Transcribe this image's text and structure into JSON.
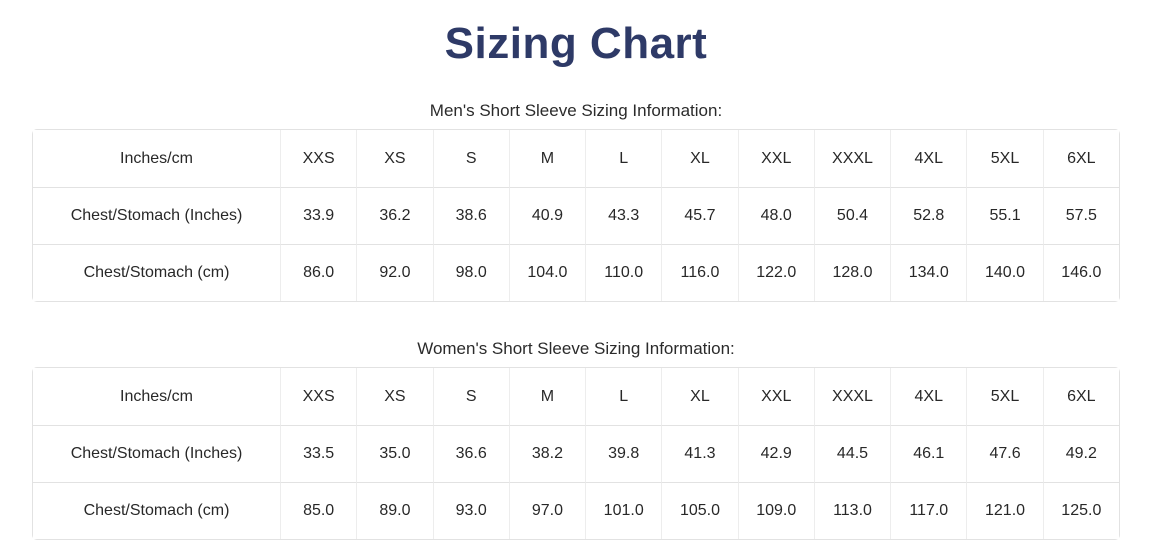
{
  "page": {
    "title": "Sizing Chart"
  },
  "colors": {
    "title": "#2e3a67",
    "text": "#282828",
    "border": "#e2e2e2"
  },
  "sections": [
    {
      "subtitle": "Men's Short Sleeve Sizing Information:",
      "table": {
        "header": [
          "Inches/cm",
          "XXS",
          "XS",
          "S",
          "M",
          "L",
          "XL",
          "XXL",
          "XXXL",
          "4XL",
          "5XL",
          "6XL"
        ],
        "rows": [
          {
            "label": "Chest/Stomach (Inches)",
            "values": [
              "33.9",
              "36.2",
              "38.6",
              "40.9",
              "43.3",
              "45.7",
              "48.0",
              "50.4",
              "52.8",
              "55.1",
              "57.5"
            ]
          },
          {
            "label": "Chest/Stomach (cm)",
            "values": [
              "86.0",
              "92.0",
              "98.0",
              "104.0",
              "110.0",
              "116.0",
              "122.0",
              "128.0",
              "134.0",
              "140.0",
              "146.0"
            ]
          }
        ]
      }
    },
    {
      "subtitle": "Women's Short Sleeve Sizing Information:",
      "table": {
        "header": [
          "Inches/cm",
          "XXS",
          "XS",
          "S",
          "M",
          "L",
          "XL",
          "XXL",
          "XXXL",
          "4XL",
          "5XL",
          "6XL"
        ],
        "rows": [
          {
            "label": "Chest/Stomach (Inches)",
            "values": [
              "33.5",
              "35.0",
              "36.6",
              "38.2",
              "39.8",
              "41.3",
              "42.9",
              "44.5",
              "46.1",
              "47.6",
              "49.2"
            ]
          },
          {
            "label": "Chest/Stomach (cm)",
            "values": [
              "85.0",
              "89.0",
              "93.0",
              "97.0",
              "101.0",
              "105.0",
              "109.0",
              "113.0",
              "117.0",
              "121.0",
              "125.0"
            ]
          }
        ]
      }
    }
  ]
}
